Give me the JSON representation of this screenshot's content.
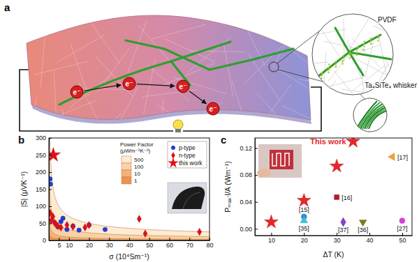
{
  "diagram": {
    "label": "a",
    "electrons": [
      "e⁻",
      "e⁻",
      "e⁻",
      "e⁻"
    ],
    "matrix": "PVDF",
    "whisker": "Ta₄SiTe₄ whisker"
  },
  "chart_data": [
    {
      "type": "scatter",
      "title": "b",
      "x_label": "σ (10⁴Sm⁻¹)",
      "y_label": "|S| (μVK⁻¹)",
      "xlim": [
        0,
        80
      ],
      "xticks": [
        5,
        10,
        20,
        30,
        40,
        50,
        60,
        70,
        80
      ],
      "ylim": [
        0,
        300
      ],
      "yticks": [
        0,
        50,
        100,
        150,
        200,
        250,
        300
      ],
      "legend": "upper right",
      "power_factor": {
        "title": "Power Factor (μWm⁻¹K⁻²)",
        "levels": [
          500,
          100,
          10,
          1
        ],
        "colors": [
          "#fdebd3",
          "#f8d2a6",
          "#f2b27a",
          "#ea9455"
        ]
      },
      "series": [
        {
          "name": "p-type",
          "color": "#1f3fd6",
          "marker": "circle",
          "x": [
            0.6,
            0.8,
            4.5,
            6,
            7,
            9,
            12,
            15,
            20,
            28
          ],
          "values": [
            180,
            165,
            40,
            55,
            65,
            32,
            42,
            30,
            45,
            32
          ]
        },
        {
          "name": "n-type",
          "color": "#e0101a",
          "marker": "diamond",
          "x": [
            0.7,
            1.2,
            2,
            2.8,
            3.5,
            4.5,
            6,
            9,
            12,
            18,
            20,
            45,
            48,
            75
          ],
          "values": [
            80,
            58,
            70,
            52,
            48,
            42,
            38,
            45,
            40,
            38,
            45,
            63,
            20,
            25
          ]
        },
        {
          "name": "this work",
          "color": "#e0101a",
          "marker": "star",
          "x": [
            2.2
          ],
          "values": [
            250
          ]
        }
      ]
    },
    {
      "type": "scatter",
      "title": "c",
      "x_label": "ΔT (K)",
      "y_label": "Pₘₐₓ·l/A (Wm⁻¹)",
      "xlim": [
        5,
        53
      ],
      "xticks": [
        10,
        20,
        30,
        40,
        50
      ],
      "ylim": [
        -0.01,
        0.135
      ],
      "yticks": [
        {
          "value": 0,
          "label": "0.00"
        },
        0.04,
        0.08,
        0.12
      ],
      "series": [
        {
          "name": "This work",
          "color": "#e8262a",
          "marker": "star",
          "x": [
            10,
            20,
            30,
            35
          ],
          "values": [
            0.01,
            0.042,
            0.093,
            0.13
          ]
        },
        {
          "name": "[17]",
          "color": "#f5a030",
          "marker": "triangle-left",
          "x": [
            47
          ],
          "values": [
            0.107
          ]
        },
        {
          "name": "[16]",
          "color": "#b5182a",
          "marker": "square",
          "x": [
            30
          ],
          "values": [
            0.047
          ]
        },
        {
          "name": "[15]",
          "color": "#2a8fe0",
          "marker": "circle",
          "x": [
            20
          ],
          "values": [
            0.018
          ]
        },
        {
          "name": "[35]",
          "color": "#35c8d8",
          "marker": "triangle-up",
          "x": [
            20
          ],
          "values": [
            0.012
          ]
        },
        {
          "name": "[37]",
          "color": "#8a3fc8",
          "marker": "diamond",
          "x": [
            32
          ],
          "values": [
            0.01
          ]
        },
        {
          "name": "[36]",
          "color": "#7d7d1a",
          "marker": "triangle-down",
          "x": [
            38
          ],
          "values": [
            0.01
          ]
        },
        {
          "name": "[27]",
          "color": "#e03ce0",
          "marker": "circle",
          "x": [
            50
          ],
          "values": [
            0.012
          ]
        }
      ]
    }
  ]
}
